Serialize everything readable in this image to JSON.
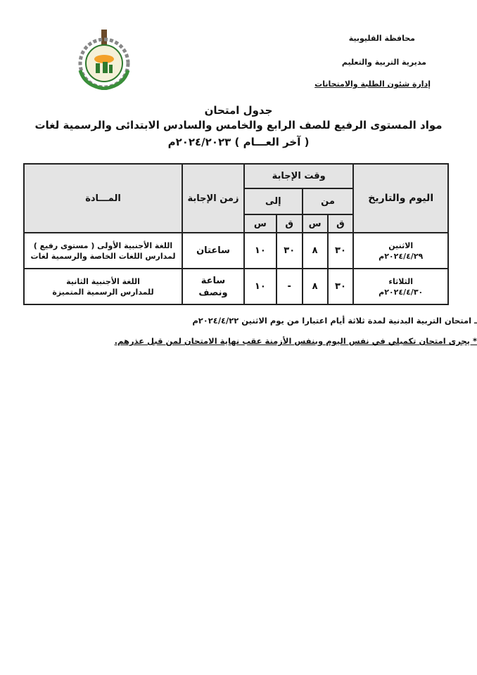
{
  "header": {
    "governorate": "محافظة القليوبية",
    "directorate": "مديرية التربية والتعليم",
    "department": "إدارة شئون الطلبة والامتحانات"
  },
  "title": {
    "line1": "جدول امتحان",
    "line2": "مواد المستوى الرفيع للصف الرابع والخامس والسادس الابتدائى والرسمية لغات",
    "line3": "( آخر العـــام ) ٢٠٢٤/٢٠٢٣م"
  },
  "table": {
    "headers": {
      "day_date": "اليوم والتاريخ",
      "answer_time": "وقت الإجابة",
      "from": "من",
      "to": "إلى",
      "minute": "ق",
      "hour": "س",
      "duration": "زمن الإجابة",
      "subject": "المـــادة"
    },
    "rows": [
      {
        "day": "الاثنين",
        "date": "٢٠٢٤/٤/٢٩م",
        "from_min": "٣٠",
        "from_hour": "٨",
        "to_min": "٣٠",
        "to_hour": "١٠",
        "duration": "ساعتان",
        "subject_line1": "اللغة الأجنبية الأولى ( مستوى رفيع )",
        "subject_line2": "لمدارس اللغات الخاصة والرسمية لغات"
      },
      {
        "day": "الثلاثاء",
        "date": "٢٠٢٤/٤/٣٠م",
        "from_min": "٣٠",
        "from_hour": "٨",
        "to_min": "-",
        "to_hour": "١٠",
        "duration": "ساعة ونصف",
        "subject_line1": "اللغة الأجنبية الثانية",
        "subject_line2": "للمدارس الرسمية المتميزة"
      }
    ]
  },
  "notes": {
    "pe": "ـ امتحان التربية البدنية لمدة ثلاثة أيام اعتبارا من يوم الاثنين ٢٠٢٤/٤/٢٢م",
    "makeup": "* يجرى امتحان تكميلي في نفس اليوم وبنفس الأزمنة عقب نهاية الامتحان لمن قبل عذرهم."
  },
  "logo": {
    "icon": "education-directorate-emblem"
  }
}
